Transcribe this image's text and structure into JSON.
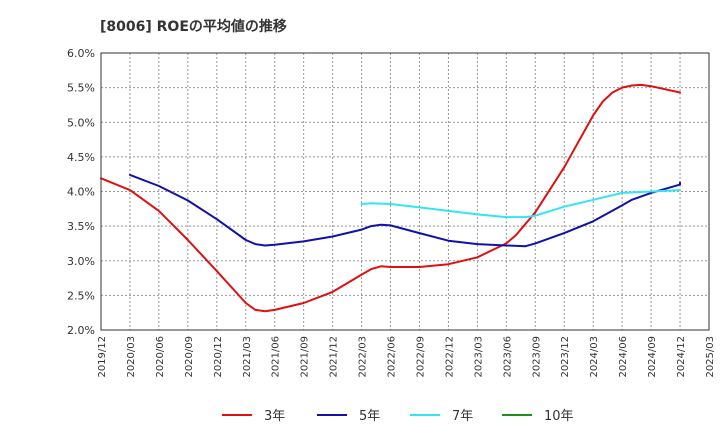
{
  "chart_data": {
    "type": "line",
    "title": "[8006]  ROEの平均値の推移",
    "xlabel": "",
    "ylabel": "",
    "ylim": [
      2.0,
      6.0
    ],
    "y_ticks": [
      "2.0%",
      "2.5%",
      "3.0%",
      "3.5%",
      "4.0%",
      "4.5%",
      "5.0%",
      "5.5%",
      "6.0%"
    ],
    "y_tick_values": [
      2.0,
      2.5,
      3.0,
      3.5,
      4.0,
      4.5,
      5.0,
      5.5,
      6.0
    ],
    "x_ticks": [
      "2019/12",
      "2020/03",
      "2020/06",
      "2020/09",
      "2020/12",
      "2021/03",
      "2021/06",
      "2021/09",
      "2021/12",
      "2022/03",
      "2022/06",
      "2022/09",
      "2022/12",
      "2023/03",
      "2023/06",
      "2023/09",
      "2023/12",
      "2024/03",
      "2024/06",
      "2024/09",
      "2024/12",
      "2025/03"
    ],
    "x_range_months": [
      0,
      63
    ],
    "grid": true,
    "legend_position": "bottom",
    "series": [
      {
        "name": "3年",
        "color": "#dd1111",
        "points": [
          [
            0,
            4.19
          ],
          [
            3,
            4.02
          ],
          [
            6,
            3.72
          ],
          [
            9,
            3.3
          ],
          [
            12,
            2.85
          ],
          [
            15,
            2.39
          ],
          [
            16,
            2.29
          ],
          [
            17,
            2.27
          ],
          [
            18,
            2.29
          ],
          [
            21,
            2.39
          ],
          [
            24,
            2.55
          ],
          [
            27,
            2.8
          ],
          [
            28,
            2.88
          ],
          [
            29,
            2.92
          ],
          [
            30,
            2.91
          ],
          [
            33,
            2.91
          ],
          [
            36,
            2.95
          ],
          [
            39,
            3.05
          ],
          [
            42,
            3.25
          ],
          [
            43,
            3.37
          ],
          [
            45,
            3.7
          ],
          [
            48,
            4.35
          ],
          [
            51,
            5.1
          ],
          [
            52,
            5.3
          ],
          [
            53,
            5.43
          ],
          [
            54,
            5.5
          ],
          [
            55,
            5.53
          ],
          [
            56,
            5.54
          ],
          [
            57,
            5.52
          ],
          [
            60,
            5.43
          ]
        ]
      },
      {
        "name": "5年",
        "color": "#1111aa",
        "points": [
          [
            3,
            4.24
          ],
          [
            6,
            4.08
          ],
          [
            9,
            3.87
          ],
          [
            12,
            3.6
          ],
          [
            15,
            3.3
          ],
          [
            16,
            3.24
          ],
          [
            17,
            3.22
          ],
          [
            18,
            3.23
          ],
          [
            21,
            3.28
          ],
          [
            24,
            3.35
          ],
          [
            27,
            3.45
          ],
          [
            28,
            3.5
          ],
          [
            29,
            3.52
          ],
          [
            30,
            3.51
          ],
          [
            33,
            3.4
          ],
          [
            36,
            3.29
          ],
          [
            39,
            3.24
          ],
          [
            42,
            3.22
          ],
          [
            44,
            3.21
          ],
          [
            45,
            3.25
          ],
          [
            48,
            3.4
          ],
          [
            51,
            3.57
          ],
          [
            54,
            3.8
          ],
          [
            55,
            3.88
          ],
          [
            57,
            3.98
          ],
          [
            60,
            4.1
          ],
          [
            60,
            4.13
          ]
        ]
      },
      {
        "name": "7年",
        "color": "#33e5f0",
        "points": [
          [
            27,
            3.82
          ],
          [
            28,
            3.83
          ],
          [
            30,
            3.82
          ],
          [
            33,
            3.77
          ],
          [
            36,
            3.72
          ],
          [
            39,
            3.67
          ],
          [
            42,
            3.63
          ],
          [
            44,
            3.63
          ],
          [
            45,
            3.65
          ],
          [
            48,
            3.78
          ],
          [
            51,
            3.88
          ],
          [
            54,
            3.98
          ],
          [
            57,
            4.0
          ],
          [
            60,
            4.02
          ]
        ]
      },
      {
        "name": "10年",
        "color": "#228b22",
        "points": []
      }
    ]
  }
}
